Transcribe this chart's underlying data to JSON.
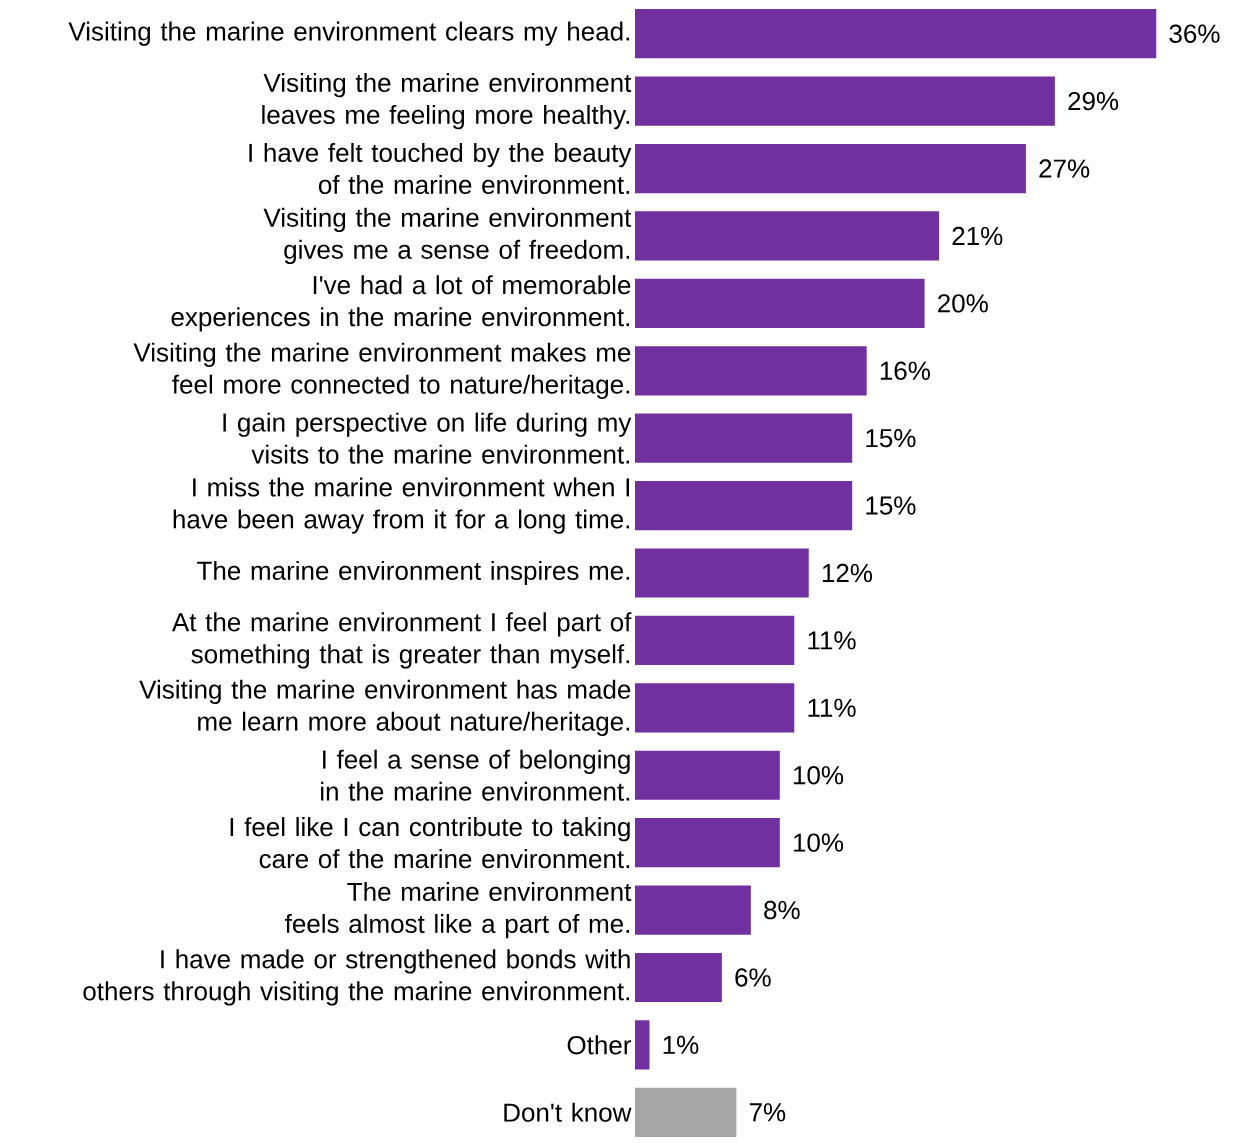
{
  "chart_data": {
    "type": "bar",
    "orientation": "horizontal",
    "categories": [
      "Visiting the marine environment clears my head.",
      "Visiting the marine environment leaves me feeling more healthy.",
      "I have felt touched by the beauty of the marine environment.",
      "Visiting the marine environment gives me a sense of freedom.",
      "I've had a lot of memorable experiences in the marine environment.",
      "Visiting the marine environment makes me feel more connected to nature/heritage.",
      "I gain perspective on life during my visits to the marine environment.",
      "I miss the marine environment when I have been away from it for a long time.",
      "The marine environment inspires me.",
      "At the marine environment I feel part of something that is greater than myself.",
      "Visiting the marine environment has made me learn more about nature/heritage.",
      "I feel a sense of belonging in the marine environment.",
      "I feel like I can contribute to taking care of the marine environment.",
      "The marine environment feels almost like a part of me.",
      "I have made or strengthened bonds with others through visiting the marine environment.",
      "Other",
      "Don't know"
    ],
    "values": [
      36,
      29,
      27,
      21,
      20,
      16,
      15,
      15,
      12,
      11,
      11,
      10,
      10,
      8,
      6,
      1,
      7
    ],
    "value_labels": [
      "36%",
      "29%",
      "27%",
      "21%",
      "20%",
      "16%",
      "15%",
      "15%",
      "12%",
      "11%",
      "11%",
      "10%",
      "10%",
      "8%",
      "6%",
      "1%",
      "7%"
    ],
    "colors": [
      "#7030a0",
      "#7030a0",
      "#7030a0",
      "#7030a0",
      "#7030a0",
      "#7030a0",
      "#7030a0",
      "#7030a0",
      "#7030a0",
      "#7030a0",
      "#7030a0",
      "#7030a0",
      "#7030a0",
      "#7030a0",
      "#7030a0",
      "#7030a0",
      "#a6a6a6"
    ]
  }
}
